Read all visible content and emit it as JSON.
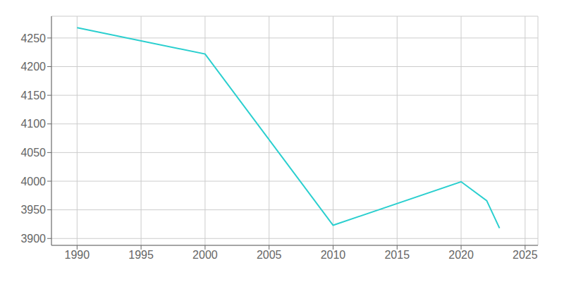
{
  "chart_data": {
    "type": "line",
    "x": [
      1990,
      2000,
      2010,
      2020,
      2022,
      2023
    ],
    "values": [
      4268,
      4222,
      3923,
      3999,
      3966,
      3918
    ],
    "color": "#2acfcf",
    "marker": "none",
    "grid": true,
    "xlim": [
      1988,
      2026
    ],
    "ylim": [
      3888,
      4288
    ],
    "xticks": [
      1990,
      1995,
      2000,
      2005,
      2010,
      2015,
      2020,
      2025
    ],
    "yticks": [
      3900,
      3950,
      4000,
      4050,
      4100,
      4150,
      4200,
      4250
    ]
  }
}
